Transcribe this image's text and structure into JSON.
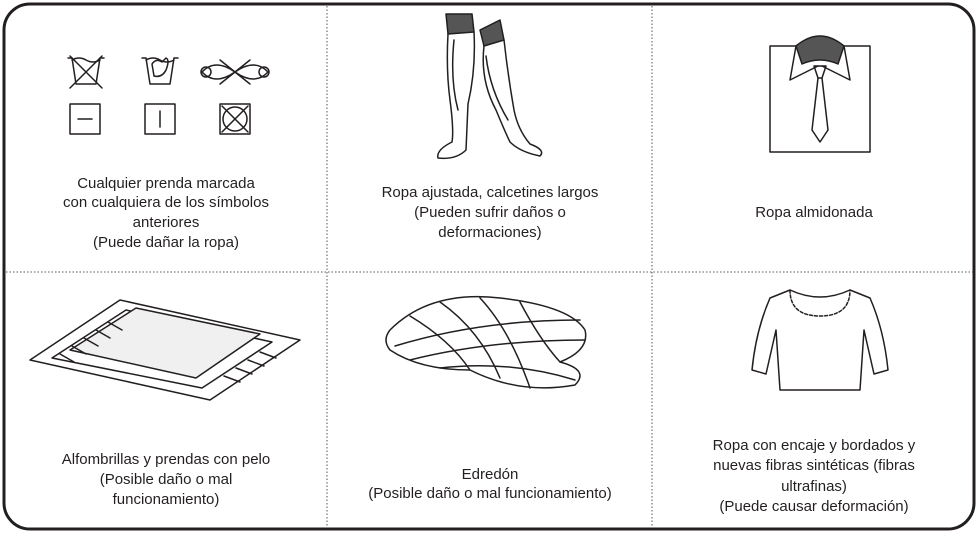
{
  "cells": [
    {
      "lines": [
        "Cualquier prenda marcada",
        "con cualquiera de los símbolos",
        "anteriores",
        "(Puede dañar la ropa)"
      ]
    },
    {
      "lines": [
        "Ropa ajustada, calcetines largos",
        "(Pueden sufrir daños o",
        "deformaciones)"
      ]
    },
    {
      "lines": [
        "Ropa almidonada"
      ]
    },
    {
      "lines": [
        "Alfombrillas y prendas con pelo",
        "(Posible daño o mal",
        "funcionamiento)"
      ]
    },
    {
      "lines": [
        "Edredón",
        "(Posible daño o mal funcionamiento)"
      ]
    },
    {
      "lines": [
        "Ropa con encaje y bordados y",
        "nuevas fibras sintéticas (fibras",
        "ultrafinas)",
        "(Puede causar deformación)"
      ]
    }
  ]
}
